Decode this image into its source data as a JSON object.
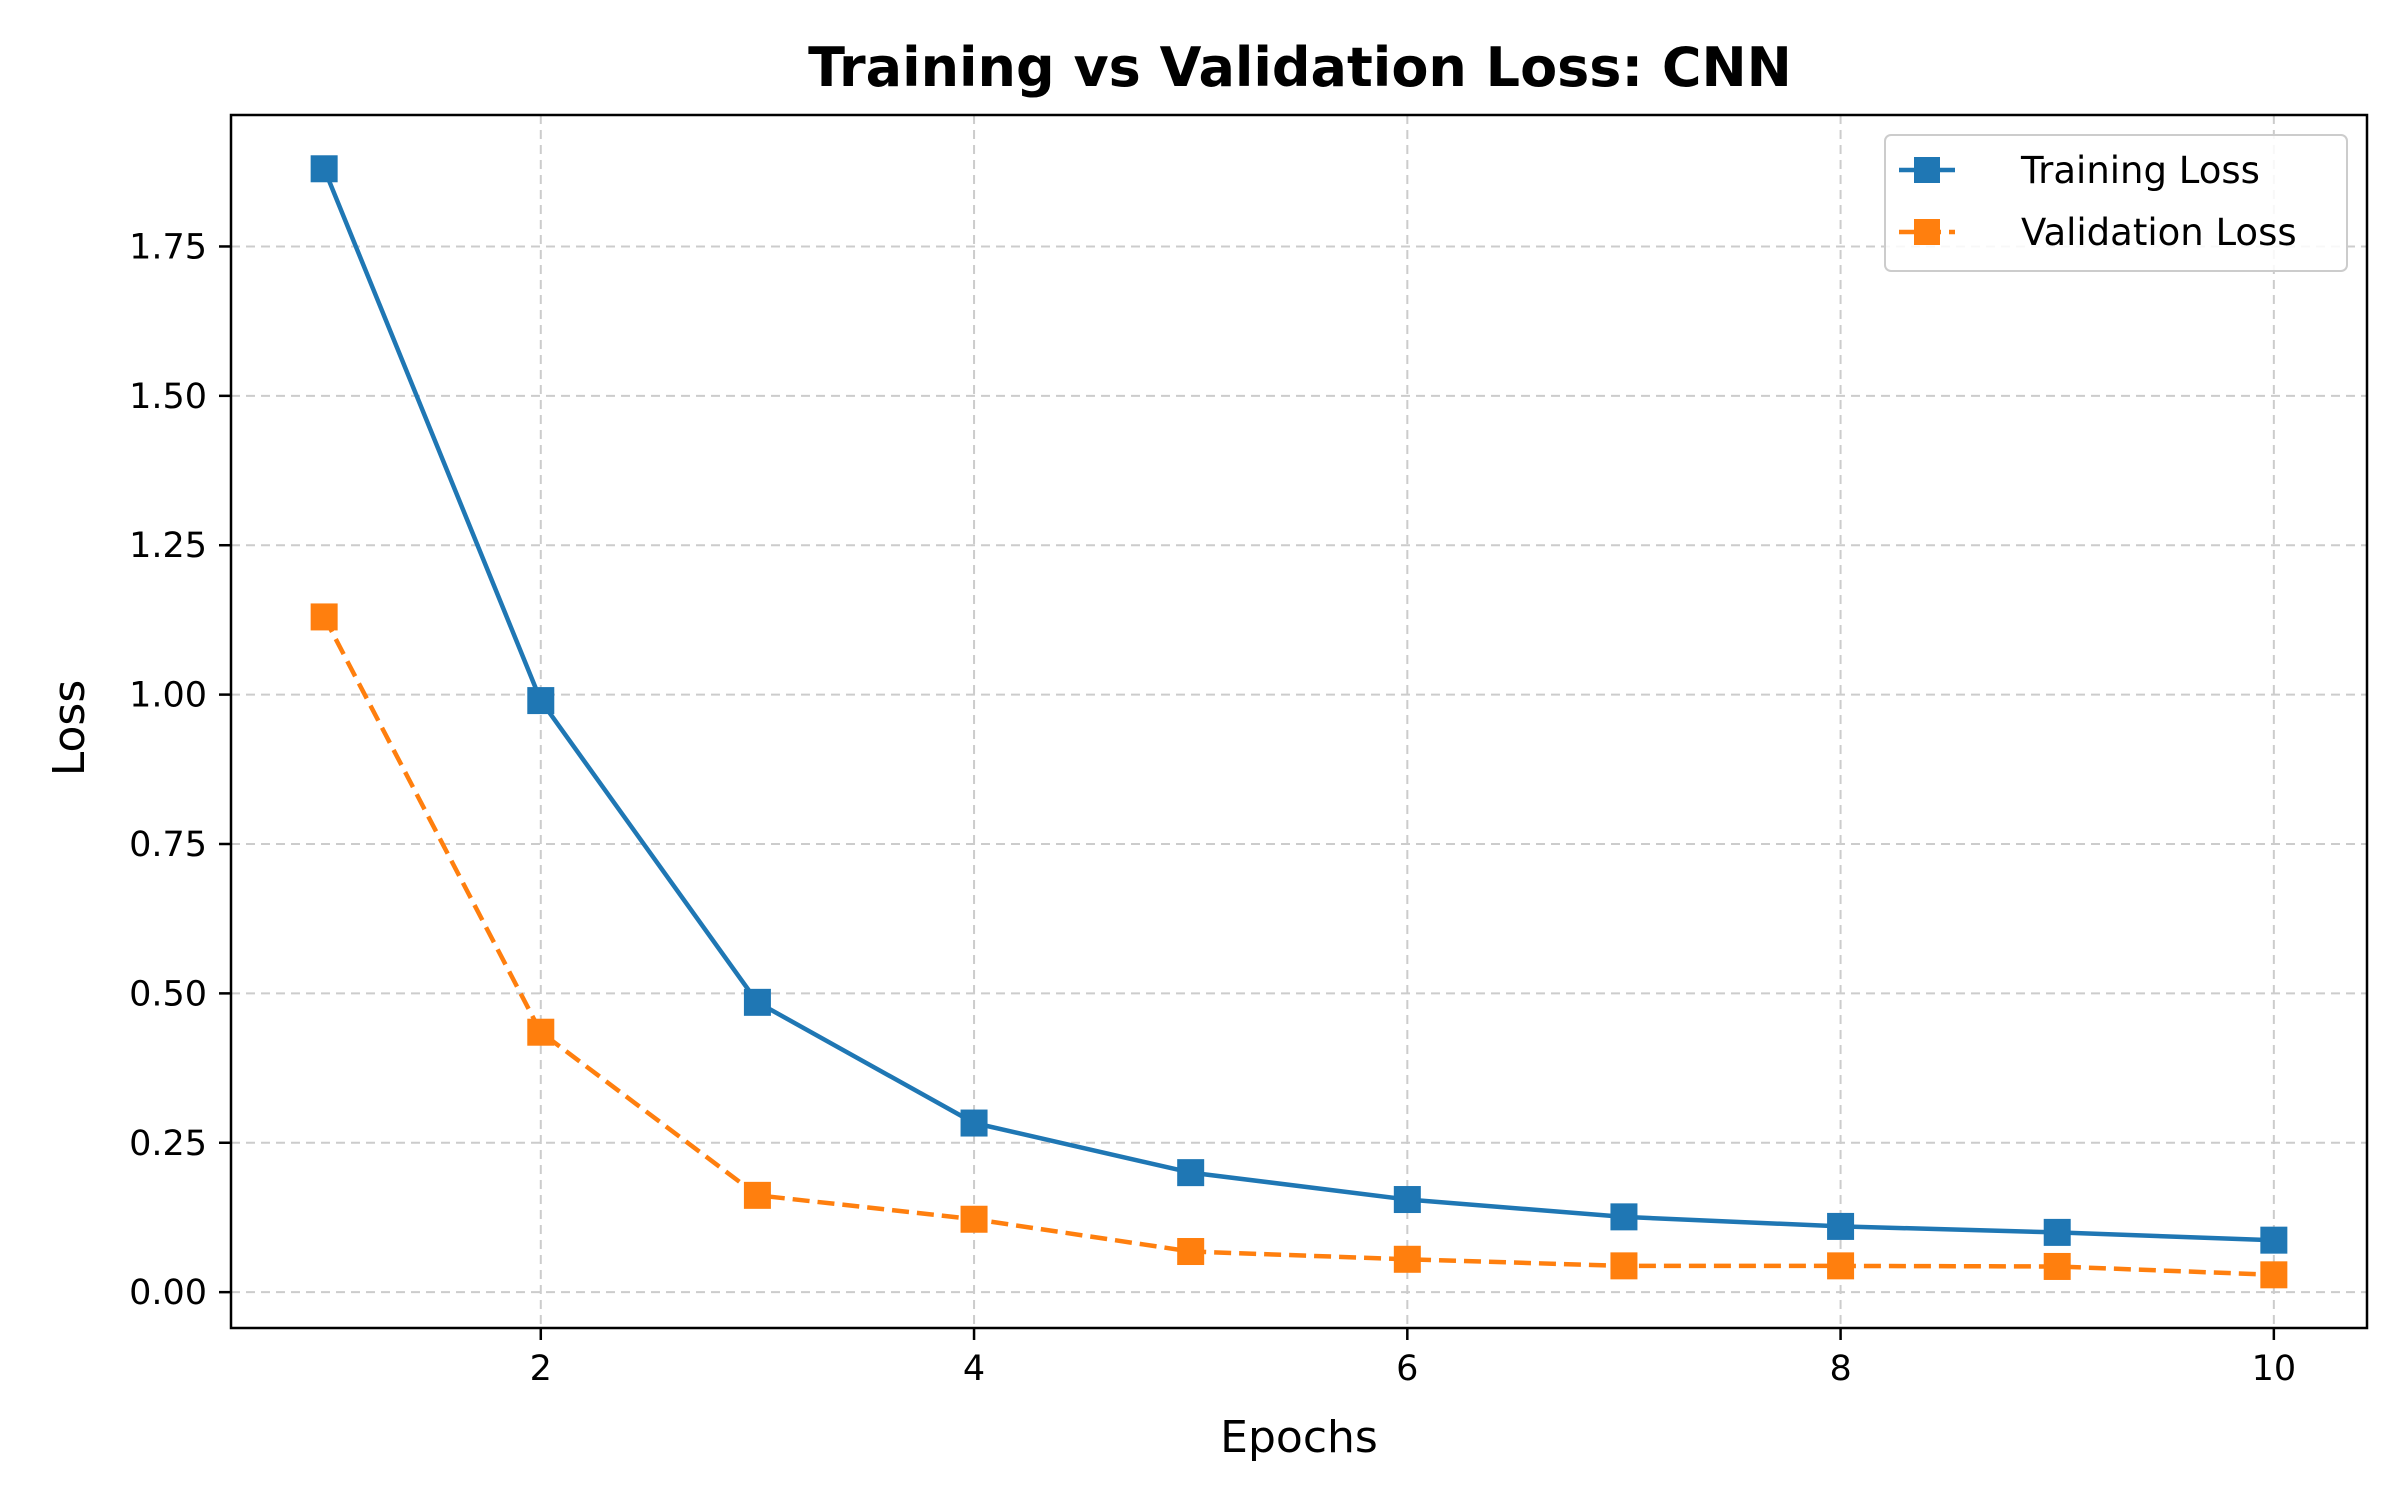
{
  "chart_data": {
    "type": "line",
    "title": "Training vs Validation Loss: CNN",
    "xlabel": "Epochs",
    "ylabel": "Loss",
    "x": [
      1,
      2,
      3,
      4,
      5,
      6,
      7,
      8,
      9,
      10
    ],
    "xlim": [
      0.57,
      10.43
    ],
    "ylim": [
      -0.06,
      1.97
    ],
    "xticks": [
      2,
      4,
      6,
      8,
      10
    ],
    "xtick_labels": [
      "2",
      "4",
      "6",
      "8",
      "10"
    ],
    "yticks": [
      0.0,
      0.25,
      0.5,
      0.75,
      1.0,
      1.25,
      1.5,
      1.75
    ],
    "ytick_labels": [
      "0.00",
      "0.25",
      "0.50",
      "0.75",
      "1.00",
      "1.25",
      "1.50",
      "1.75"
    ],
    "grid": true,
    "legend_position": "top-right",
    "series": [
      {
        "name": "Training Loss",
        "color": "#1f77b4",
        "line_style": "solid",
        "marker": "square",
        "values": [
          1.88,
          0.99,
          0.485,
          0.283,
          0.2,
          0.155,
          0.126,
          0.11,
          0.1,
          0.087
        ]
      },
      {
        "name": "Validation Loss",
        "color": "#ff7f0e",
        "line_style": "dashed",
        "marker": "square",
        "values": [
          1.13,
          0.435,
          0.162,
          0.122,
          0.068,
          0.055,
          0.044,
          0.044,
          0.043,
          0.029
        ]
      }
    ]
  }
}
